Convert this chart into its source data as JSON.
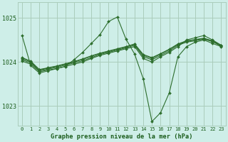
{
  "title": "Graphe pression niveau de la mer (hPa)",
  "background_color": "#ceeee8",
  "grid_color": "#aaccbb",
  "line_color": "#2d6e2d",
  "text_color": "#1a5c1a",
  "ylim": [
    1022.55,
    1025.35
  ],
  "xlim": [
    -0.5,
    23.5
  ],
  "yticks": [
    1023,
    1024,
    1025
  ],
  "xticks": [
    0,
    1,
    2,
    3,
    4,
    5,
    6,
    7,
    8,
    9,
    10,
    11,
    12,
    13,
    14,
    15,
    16,
    17,
    18,
    19,
    20,
    21,
    22,
    23
  ],
  "series": [
    {
      "x": [
        0,
        1,
        2,
        3,
        4,
        5,
        6,
        7,
        8,
        9,
        10,
        11,
        12,
        13,
        14,
        15,
        16,
        17,
        18,
        19,
        20,
        21,
        22,
        23
      ],
      "y": [
        1024.6,
        1023.92,
        1023.75,
        1023.8,
        1023.85,
        1023.9,
        1024.05,
        1024.22,
        1024.42,
        1024.62,
        1024.92,
        1025.02,
        1024.52,
        1024.18,
        1023.62,
        1022.65,
        1022.85,
        1023.3,
        1024.12,
        1024.35,
        1024.45,
        1024.5,
        1024.42,
        1024.35
      ]
    },
    {
      "x": [
        0,
        1,
        2,
        3,
        4,
        5,
        6,
        7,
        8,
        9,
        10,
        11,
        12,
        13,
        14,
        15,
        16,
        17,
        18,
        19,
        20,
        21,
        22,
        23
      ],
      "y": [
        1024.02,
        1023.95,
        1023.78,
        1023.82,
        1023.85,
        1023.9,
        1023.95,
        1024.0,
        1024.08,
        1024.15,
        1024.2,
        1024.25,
        1024.3,
        1024.35,
        1024.08,
        1024.0,
        1024.12,
        1024.22,
        1024.35,
        1024.5,
        1024.55,
        1024.6,
        1024.5,
        1024.38
      ]
    },
    {
      "x": [
        0,
        1,
        2,
        3,
        4,
        5,
        6,
        7,
        8,
        9,
        10,
        11,
        12,
        13,
        14,
        15,
        16,
        17,
        18,
        19,
        20,
        21,
        22,
        23
      ],
      "y": [
        1024.05,
        1023.98,
        1023.8,
        1023.84,
        1023.88,
        1023.93,
        1023.98,
        1024.03,
        1024.1,
        1024.17,
        1024.22,
        1024.27,
        1024.32,
        1024.38,
        1024.12,
        1024.05,
        1024.15,
        1024.25,
        1024.38,
        1024.45,
        1024.48,
        1024.52,
        1024.46,
        1024.36
      ]
    },
    {
      "x": [
        0,
        1,
        2,
        3,
        4,
        5,
        6,
        7,
        8,
        9,
        10,
        11,
        12,
        13,
        14,
        15,
        16,
        17,
        18,
        19,
        20,
        21,
        22,
        23
      ],
      "y": [
        1024.08,
        1024.0,
        1023.82,
        1023.86,
        1023.9,
        1023.95,
        1024.0,
        1024.06,
        1024.13,
        1024.19,
        1024.24,
        1024.29,
        1024.34,
        1024.4,
        1024.15,
        1024.08,
        1024.18,
        1024.28,
        1024.4,
        1024.47,
        1024.5,
        1024.53,
        1024.47,
        1024.37
      ]
    },
    {
      "x": [
        0,
        1,
        2,
        3,
        4,
        5,
        6,
        7,
        8,
        9,
        10,
        11,
        12,
        13,
        14,
        15,
        16,
        17,
        18,
        19,
        20,
        21,
        22,
        23
      ],
      "y": [
        1024.1,
        1024.02,
        1023.83,
        1023.87,
        1023.91,
        1023.96,
        1024.01,
        1024.07,
        1024.14,
        1024.2,
        1024.25,
        1024.3,
        1024.35,
        1024.41,
        1024.17,
        1024.1,
        1024.19,
        1024.29,
        1024.41,
        1024.48,
        1024.51,
        1024.54,
        1024.48,
        1024.38
      ]
    }
  ]
}
